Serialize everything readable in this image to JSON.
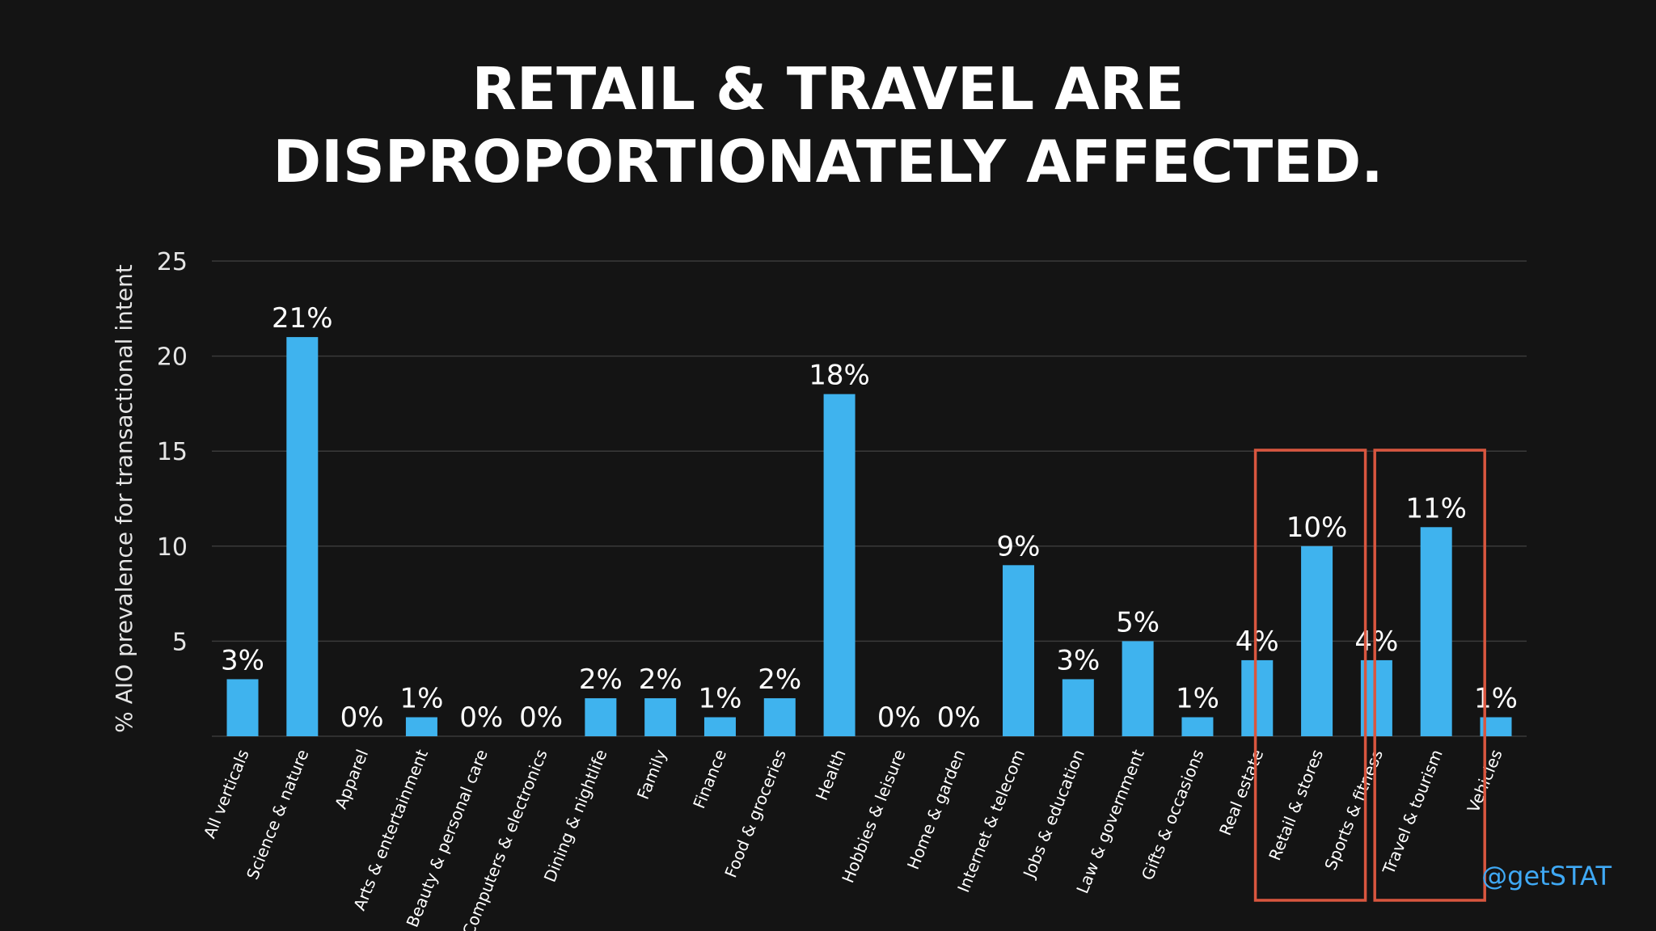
{
  "chart_data": {
    "type": "bar",
    "title_lines": [
      "RETAIL & TRAVEL ARE",
      "DISPROPORTIONATELY AFFECTED."
    ],
    "ylabel": "% AIO prevalence for transactional intent",
    "xlabel": "",
    "ylim": [
      0,
      25
    ],
    "yticks": [
      5,
      10,
      15,
      20,
      25
    ],
    "grid": true,
    "categories": [
      "All verticals",
      "Science & nature",
      "Apparel",
      "Arts & entertainment",
      "Beauty & personal care",
      "Computers & electronics",
      "Dining & nightlife",
      "Family",
      "Finance",
      "Food & groceries",
      "Health",
      "Hobbies & leisure",
      "Home & garden",
      "Internet & telecom",
      "Jobs & education",
      "Law & government",
      "Gifts & occasions",
      "Real estate",
      "Retail & stores",
      "Sports & fitness",
      "Travel & tourism",
      "Vehicles"
    ],
    "values": [
      3,
      21,
      0,
      1,
      0,
      0,
      2,
      2,
      1,
      2,
      18,
      0,
      0,
      9,
      3,
      5,
      1,
      4,
      10,
      4,
      11,
      1
    ],
    "value_labels": [
      "3%",
      "21%",
      "0%",
      "1%",
      "0%",
      "0%",
      "2%",
      "2%",
      "1%",
      "2%",
      "18%",
      "0%",
      "0%",
      "9%",
      "3%",
      "5%",
      "1%",
      "4%",
      "10%",
      "4%",
      "11%",
      "1%"
    ],
    "highlighted_categories": [
      "Retail & stores",
      "Travel & tourism"
    ],
    "bar_color": "#3fb3ee",
    "highlight_color": "#d9563f"
  },
  "watermark": "@getSTAT",
  "colors": {
    "background": "#141414",
    "grid": "#3a3a3a",
    "text": "#ffffff",
    "watermark": "#3fa9f5"
  }
}
